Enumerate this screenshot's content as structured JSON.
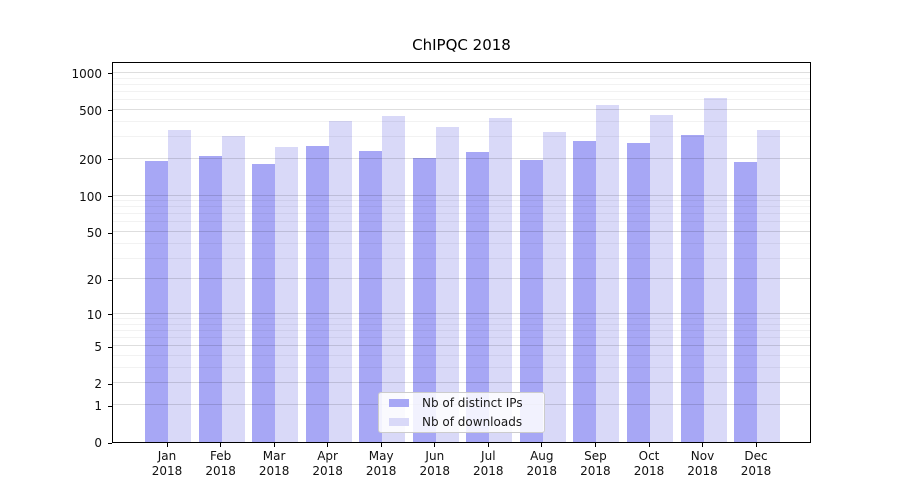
{
  "chart_data": {
    "type": "bar",
    "title": "ChIPQC 2018",
    "y_scale": "log1p",
    "grid": true,
    "legend_position": "lower-center",
    "categories": [
      "Jan",
      "Feb",
      "Mar",
      "Apr",
      "May",
      "Jun",
      "Jul",
      "Aug",
      "Sep",
      "Oct",
      "Nov",
      "Dec"
    ],
    "category_year": "2018",
    "series": [
      {
        "name": "Nb of distinct IPs",
        "color": "#a7a7f5",
        "values": [
          192,
          210,
          181,
          255,
          232,
          203,
          225,
          195,
          278,
          268,
          314,
          188
        ]
      },
      {
        "name": "Nb of downloads",
        "color": "#d9d9f8",
        "values": [
          342,
          305,
          251,
          408,
          448,
          361,
          430,
          333,
          551,
          458,
          625,
          345
        ]
      }
    ],
    "yticks": [
      0,
      1,
      2,
      5,
      10,
      20,
      50,
      100,
      200,
      500,
      1000
    ],
    "minor_yticks": [
      3,
      4,
      6,
      7,
      8,
      9,
      30,
      40,
      60,
      70,
      80,
      90,
      300,
      400,
      600,
      700,
      800,
      900
    ],
    "ylim": [
      0,
      1250
    ],
    "xlabel": "",
    "ylabel": ""
  },
  "colors": {
    "background": "#ffffff",
    "axis": "#000000",
    "tick_text": "#111111",
    "major_grid": "rgba(0,0,0,0.13)",
    "minor_grid": "rgba(0,0,0,0.05)",
    "legend_border": "#cccccc"
  }
}
